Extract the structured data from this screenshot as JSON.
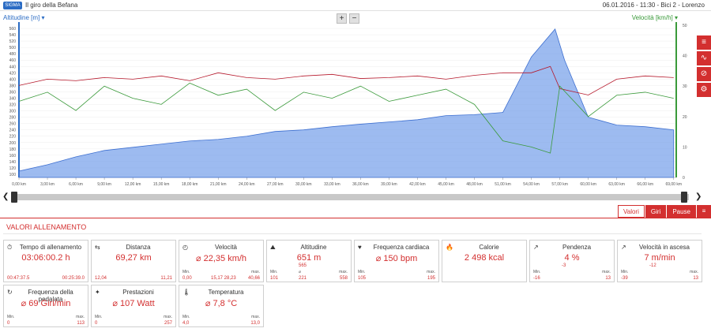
{
  "header": {
    "title": "Il giro della Befana",
    "meta": "06.01.2016  -  11:30  -  Bici 2  -  Lorenzo",
    "logo_text": "SIGMA"
  },
  "chart": {
    "left_axis_label": "Altitudine [m]",
    "right_axis_label": "Velocità [km/h]",
    "zoom_in": "+",
    "zoom_out": "−"
  },
  "chart_data": {
    "type": "line",
    "series": [
      {
        "name": "Altitudine",
        "color": "#5b8ee6",
        "x": [
          0,
          3,
          6,
          9,
          12,
          15,
          18,
          21,
          24,
          27,
          30,
          33,
          36,
          39,
          42,
          45,
          48,
          51,
          54,
          56.5,
          57.5,
          60,
          63,
          66,
          69
        ],
        "values": [
          110,
          130,
          155,
          175,
          185,
          195,
          205,
          210,
          220,
          235,
          240,
          250,
          258,
          265,
          272,
          285,
          288,
          295,
          470,
          558,
          460,
          280,
          255,
          250,
          240
        ]
      },
      {
        "name": "Frequenza cardiaca",
        "color": "#b5172a",
        "x": [
          0,
          3,
          6,
          9,
          12,
          15,
          18,
          21,
          24,
          27,
          30,
          33,
          36,
          39,
          42,
          45,
          48,
          51,
          54,
          56,
          57,
          60,
          63,
          66,
          69
        ],
        "values": [
          380,
          400,
          395,
          405,
          400,
          410,
          395,
          420,
          405,
          400,
          410,
          415,
          402,
          405,
          410,
          400,
          412,
          420,
          420,
          440,
          370,
          350,
          400,
          410,
          405
        ]
      },
      {
        "name": "Velocità",
        "color": "#3a9a3a",
        "x": [
          0,
          3,
          6,
          9,
          12,
          15,
          18,
          21,
          24,
          27,
          30,
          33,
          36,
          39,
          42,
          45,
          48,
          51,
          54,
          56,
          57,
          60,
          63,
          66,
          69
        ],
        "values": [
          25,
          28,
          22,
          30,
          26,
          24,
          31,
          27,
          29,
          22,
          28,
          26,
          30,
          25,
          27,
          29,
          24,
          12,
          10,
          8,
          30,
          20,
          27,
          28,
          26
        ]
      }
    ],
    "xlabels": [
      "0,00 km",
      "3,00 km",
      "6,00 km",
      "9,00 km",
      "12,00 km",
      "15,00 km",
      "18,00 km",
      "21,00 km",
      "24,00 km",
      "27,00 km",
      "30,00 km",
      "33,00 km",
      "36,00 km",
      "39,00 km",
      "42,00 km",
      "45,00 km",
      "48,00 km",
      "51,00 km",
      "54,00 km",
      "57,00 km",
      "60,00 km",
      "63,00 km",
      "66,00 km",
      "69,00 km"
    ],
    "y_left_ticks": [
      "560",
      "540",
      "520",
      "500",
      "480",
      "460",
      "440",
      "420",
      "400",
      "380",
      "360",
      "340",
      "320",
      "300",
      "280",
      "260",
      "240",
      "220",
      "200",
      "180",
      "160",
      "140",
      "120",
      "100"
    ],
    "y_right_ticks": [
      "50",
      "40",
      "30",
      "20",
      "10",
      "0"
    ],
    "xlim": [
      0,
      69.27
    ],
    "ylim_left": [
      90,
      570
    ],
    "ylim_right": [
      0,
      50
    ]
  },
  "tabs": [
    {
      "label": "Valori",
      "active": true
    },
    {
      "label": "Giri",
      "active": false
    },
    {
      "label": "Pause",
      "active": false
    }
  ],
  "section_title": "VALORI ALLENAMENTO",
  "cards": [
    {
      "icon": "⏱",
      "label": "Tempo di allenamento",
      "value": "03:06:00.2 h",
      "min_label": "",
      "max_label": "",
      "min": "00:47:37.5",
      "max": "00:25:39.0"
    },
    {
      "icon": "⇆",
      "label": "Distanza",
      "value": "69,27 km",
      "min_label": "",
      "max_label": "",
      "min": "12,04",
      "max": "11,21"
    },
    {
      "icon": "◴",
      "label": "Velocità",
      "value": "⌀ 22,35 km/h",
      "min_label": "Min.",
      "max_label": "max.",
      "min": "0,00",
      "avg": "15,17   28,23",
      "max": "40,66"
    },
    {
      "icon": "⛰",
      "label": "Altitudine",
      "value": "651 m",
      "sub": "565",
      "min_label": "Min.",
      "avg_label": "⌀",
      "max_label": "max.",
      "min": "101",
      "avg": "221",
      "max": "558"
    },
    {
      "icon": "♥",
      "label": "Frequenza cardiaca",
      "value": "⌀ 150 bpm",
      "min_label": "Min.",
      "max_label": "max.",
      "min": "105",
      "max": "195"
    },
    {
      "icon": "🔥",
      "label": "Calorie",
      "value": "2 498 kcal",
      "min_label": "",
      "max_label": "",
      "min": "",
      "max": ""
    },
    {
      "icon": "↗",
      "label": "Pendenza",
      "value": "4 %",
      "sub": "-3",
      "min_label": "Min.",
      "max_label": "max.",
      "min": "-16",
      "max": "13"
    },
    {
      "icon": "↗",
      "label": "Velocità in ascesa",
      "value": "7 m/min",
      "sub": "-12",
      "min_label": "Min.",
      "max_label": "max.",
      "min": "-39",
      "max": "13"
    },
    {
      "icon": "↻",
      "label": "Frequenza della pedalata",
      "value": "⌀ 69 Giri/min",
      "min_label": "Min.",
      "max_label": "max.",
      "min": "0",
      "max": "113"
    },
    {
      "icon": "✦",
      "label": "Prestazioni",
      "value": "⌀ 107 Watt",
      "min_label": "Min.",
      "max_label": "max.",
      "min": "0",
      "max": "257"
    },
    {
      "icon": "🌡",
      "label": "Temperatura",
      "value": "⌀ 7,8 °C",
      "min_label": "Min.",
      "max_label": "max.",
      "min": "4,0",
      "max": "13,0"
    }
  ]
}
